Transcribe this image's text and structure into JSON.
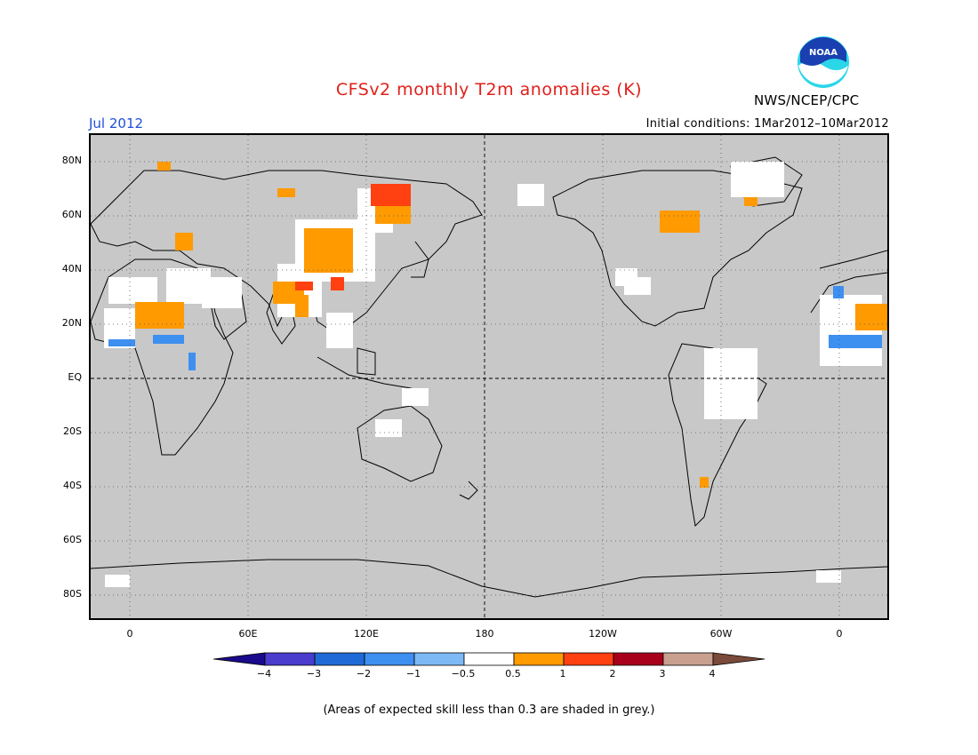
{
  "title": "CFSv2 monthly T2m anomalies (K)",
  "month": "Jul 2012",
  "initial_conditions": "Initial conditions: 1Mar2012–10Mar2012",
  "agency": "NWS/NCEP/CPC",
  "logo": {
    "icon": "noaa-logo",
    "text": "NOAA"
  },
  "lat_labels": [
    "80N",
    "60N",
    "40N",
    "20N",
    "EQ",
    "20S",
    "40S",
    "60S",
    "80S"
  ],
  "lon_labels": [
    "0",
    "60E",
    "120E",
    "180",
    "120W",
    "60W",
    "0"
  ],
  "colorbar": {
    "colors": [
      "#1a0a8c",
      "#4a3ccc",
      "#1f6ad6",
      "#3d8ff0",
      "#7db9f5",
      "#ffffff",
      "#ff9a00",
      "#ff4010",
      "#a8001a",
      "#c9a090",
      "#7a4a3a"
    ],
    "labels": [
      "−4",
      "−3",
      "−2",
      "−1",
      "−0.5",
      "0.5",
      "1",
      "2",
      "3",
      "4"
    ]
  },
  "footnote": "(Areas of expected skill less than 0.3 are shaded in grey.)",
  "colors": {
    "skill_grey": "#c8c8c8",
    "warm": "#ff9a00",
    "hot": "#ff4010",
    "cool": "#3d8ff0"
  }
}
